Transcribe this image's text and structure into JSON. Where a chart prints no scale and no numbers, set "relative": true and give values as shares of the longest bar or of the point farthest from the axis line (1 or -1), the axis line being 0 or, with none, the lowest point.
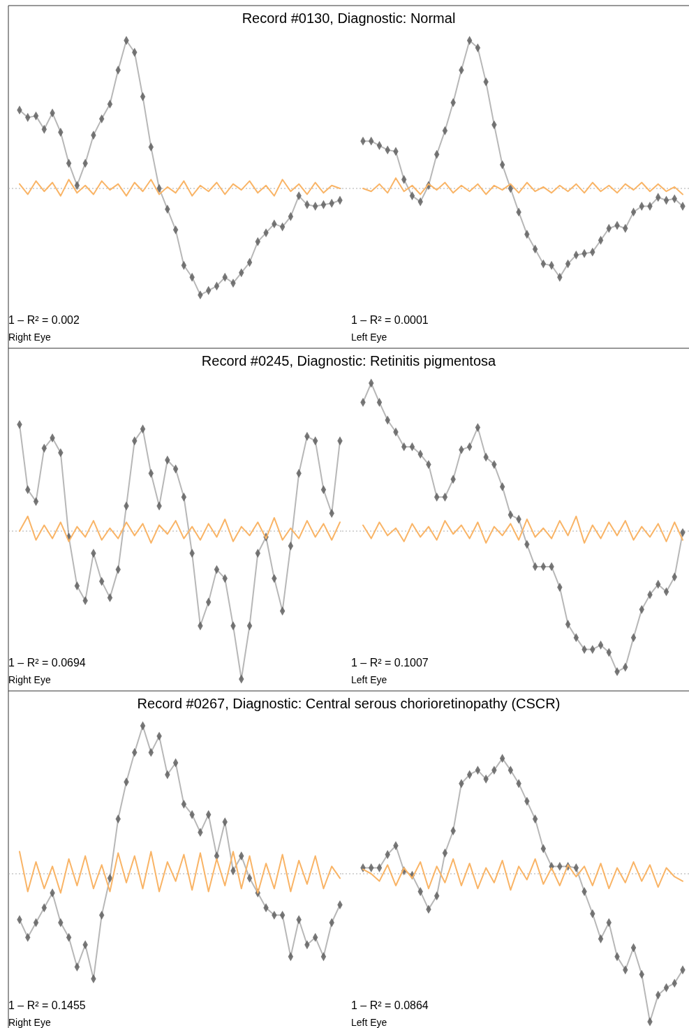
{
  "chart_data": [
    {
      "type": "line",
      "title": "Record #0130, Diagnostic: Normal",
      "relative": true,
      "ref_lines": [
        {
          "axis": "y",
          "value": 0,
          "color": "#aaaaaa",
          "line_style": "dotted"
        }
      ],
      "annotations": [
        "1 – R² = 0.002",
        "Right Eye"
      ],
      "categories": [
        null,
        null,
        null,
        null,
        null,
        null,
        null,
        null,
        null,
        null,
        null,
        null,
        null,
        null,
        null,
        null,
        null,
        null,
        null,
        null,
        null,
        null,
        null,
        null,
        null,
        null,
        null,
        null,
        null,
        null,
        null,
        null,
        null,
        null,
        null,
        null,
        null,
        null,
        null,
        null
      ],
      "series": [
        {
          "marker": "diamond",
          "color": "#606060",
          "values": [
            0.53,
            0.48,
            0.49,
            0.4,
            0.51,
            0.38,
            0.17,
            0.02,
            0.17,
            0.36,
            0.47,
            0.57,
            0.8,
            1.0,
            0.92,
            0.62,
            0.28,
            0,
            -0.14,
            -0.28,
            -0.52,
            -0.6,
            -0.72,
            -0.69,
            -0.66,
            -0.6,
            -0.64,
            -0.57,
            -0.5,
            -0.36,
            -0.3,
            -0.24,
            -0.26,
            -0.19,
            -0.05,
            -0.11,
            -0.12,
            -0.11,
            -0.1,
            -0.08
          ]
        },
        {
          "type": "line",
          "color": "#f9b466",
          "values": [
            0.03,
            -0.04,
            0.05,
            -0.02,
            0.04,
            -0.05,
            0.06,
            -0.03,
            0.02,
            -0.04,
            0.05,
            -0.01,
            0.03,
            -0.05,
            0.04,
            -0.02,
            0.06,
            -0.04,
            0.01,
            -0.03,
            0.05,
            -0.05,
            0.02,
            -0.02,
            0.04,
            -0.04,
            0.03,
            -0.01,
            0.05,
            -0.03,
            0.02,
            -0.05,
            0.06,
            -0.02,
            0.03,
            -0.04,
            0.04,
            -0.03,
            0.02,
            0.0
          ]
        }
      ]
    },
    {
      "type": "line",
      "relative": true,
      "ref_lines": [
        {
          "axis": "y",
          "value": 0,
          "color": "#aaaaaa",
          "line_style": "dotted"
        }
      ],
      "annotations": [
        "1 – R² = 0.0001",
        "Left Eye"
      ],
      "categories": [
        null,
        null,
        null,
        null,
        null,
        null,
        null,
        null,
        null,
        null,
        null,
        null,
        null,
        null,
        null,
        null,
        null,
        null,
        null,
        null,
        null,
        null,
        null,
        null,
        null,
        null,
        null,
        null,
        null,
        null,
        null,
        null,
        null,
        null,
        null,
        null,
        null,
        null,
        null,
        null
      ],
      "series": [
        {
          "marker": "diamond",
          "color": "#606060",
          "values": [
            0.32,
            0.32,
            0.29,
            0.26,
            0.25,
            0.06,
            -0.05,
            -0.09,
            0.02,
            0.23,
            0.39,
            0.58,
            0.8,
            1.0,
            0.95,
            0.72,
            0.43,
            0.16,
            0,
            -0.16,
            -0.31,
            -0.41,
            -0.51,
            -0.52,
            -0.6,
            -0.51,
            -0.45,
            -0.44,
            -0.43,
            -0.35,
            -0.27,
            -0.25,
            -0.27,
            -0.16,
            -0.12,
            -0.12,
            -0.06,
            -0.08,
            -0.07,
            -0.12
          ]
        },
        {
          "type": "line",
          "color": "#f9b466",
          "values": [
            0.0,
            -0.02,
            0.03,
            -0.03,
            0.07,
            -0.02,
            0.02,
            -0.04,
            0.03,
            -0.01,
            0.04,
            -0.03,
            0.02,
            -0.02,
            0.03,
            -0.04,
            0.02,
            -0.01,
            0.03,
            -0.03,
            0.04,
            -0.02,
            0.01,
            -0.03,
            0.02,
            -0.02,
            0.03,
            -0.03,
            0.04,
            -0.02,
            0.02,
            -0.03,
            0.03,
            -0.01,
            0.04,
            -0.02,
            0.03,
            -0.02,
            0.01,
            -0.04
          ]
        }
      ]
    },
    {
      "type": "line",
      "title": "Record #0245, Diagnostic: Retinitis pigmentosa",
      "relative": true,
      "ref_lines": [
        {
          "axis": "y",
          "value": 0,
          "color": "#aaaaaa",
          "line_style": "dotted"
        }
      ],
      "annotations": [
        "1 – R² = 0.0694",
        "Right Eye"
      ],
      "categories": [
        null,
        null,
        null,
        null,
        null,
        null,
        null,
        null,
        null,
        null,
        null,
        null,
        null,
        null,
        null,
        null,
        null,
        null,
        null,
        null,
        null,
        null,
        null,
        null,
        null,
        null,
        null,
        null,
        null,
        null,
        null,
        null,
        null,
        null,
        null,
        null,
        null,
        null,
        null,
        null
      ],
      "series": [
        {
          "marker": "diamond",
          "color": "#606060",
          "values": [
            0.72,
            0.28,
            0.2,
            0.56,
            0.63,
            0.53,
            -0.04,
            -0.37,
            -0.47,
            -0.15,
            -0.34,
            -0.45,
            -0.26,
            0.17,
            0.61,
            0.69,
            0.39,
            0.17,
            0.48,
            0.42,
            0.23,
            -0.15,
            -0.64,
            -0.48,
            -0.26,
            -0.32,
            -0.64,
            -1.0,
            -0.64,
            -0.15,
            -0.04,
            -0.32,
            -0.54,
            -0.1,
            0.39,
            0.64,
            0.61,
            0.28,
            0.12,
            0.61
          ]
        },
        {
          "type": "line",
          "color": "#f9b466",
          "values": [
            0.0,
            0.1,
            -0.06,
            0.04,
            -0.05,
            0.06,
            -0.07,
            0.03,
            -0.04,
            0.07,
            -0.06,
            0.02,
            -0.05,
            0.06,
            -0.03,
            0.05,
            -0.08,
            0.04,
            -0.02,
            0.07,
            -0.05,
            0.03,
            -0.06,
            0.05,
            -0.04,
            0.08,
            -0.07,
            0.03,
            -0.03,
            0.06,
            -0.05,
            0.09,
            -0.06,
            0.02,
            -0.05,
            0.07,
            -0.04,
            0.05,
            -0.06,
            0.06
          ]
        }
      ]
    },
    {
      "type": "line",
      "relative": true,
      "ref_lines": [
        {
          "axis": "y",
          "value": 0,
          "color": "#aaaaaa",
          "line_style": "dotted"
        }
      ],
      "annotations": [
        "1 – R² = 0.1007",
        "Left Eye"
      ],
      "categories": [
        null,
        null,
        null,
        null,
        null,
        null,
        null,
        null,
        null,
        null,
        null,
        null,
        null,
        null,
        null,
        null,
        null,
        null,
        null,
        null,
        null,
        null,
        null,
        null,
        null,
        null,
        null,
        null,
        null,
        null,
        null,
        null,
        null,
        null,
        null,
        null,
        null,
        null,
        null,
        null
      ],
      "series": [
        {
          "marker": "diamond",
          "color": "#606060",
          "values": [
            0.87,
            1.0,
            0.87,
            0.75,
            0.67,
            0.57,
            0.57,
            0.52,
            0.45,
            0.23,
            0.23,
            0.35,
            0.55,
            0.57,
            0.7,
            0.5,
            0.45,
            0.3,
            0.11,
            0.08,
            -0.09,
            -0.24,
            -0.24,
            -0.24,
            -0.38,
            -0.63,
            -0.72,
            -0.8,
            -0.8,
            -0.77,
            -0.82,
            -0.95,
            -0.92,
            -0.72,
            -0.53,
            -0.43,
            -0.36,
            -0.41,
            -0.31,
            -0.01
          ]
        },
        {
          "type": "line",
          "color": "#f9b466",
          "values": [
            0.04,
            -0.05,
            0.06,
            -0.03,
            0.02,
            -0.07,
            0.05,
            -0.04,
            0.03,
            -0.06,
            0.07,
            -0.02,
            0.04,
            -0.05,
            0.06,
            -0.08,
            0.03,
            -0.03,
            0.05,
            -0.06,
            0.08,
            -0.04,
            0.02,
            -0.05,
            0.07,
            -0.03,
            0.1,
            -0.08,
            0.04,
            -0.05,
            0.06,
            -0.03,
            0.07,
            -0.06,
            0.03,
            -0.04,
            0.05,
            -0.07,
            0.06,
            -0.06
          ]
        }
      ]
    },
    {
      "type": "line",
      "title": "Record #0267, Diagnostic: Central serous chorioretinopathy (CSCR)",
      "relative": true,
      "ref_lines": [
        {
          "axis": "y",
          "value": 0,
          "color": "#aaaaaa",
          "line_style": "dotted"
        }
      ],
      "annotations": [
        "1 – R² = 0.1455",
        "Right Eye"
      ],
      "categories": [
        null,
        null,
        null,
        null,
        null,
        null,
        null,
        null,
        null,
        null,
        null,
        null,
        null,
        null,
        null,
        null,
        null,
        null,
        null,
        null,
        null,
        null,
        null,
        null,
        null,
        null,
        null,
        null,
        null,
        null,
        null,
        null,
        null,
        null,
        null,
        null,
        null,
        null,
        null,
        null
      ],
      "series": [
        {
          "marker": "diamond",
          "color": "#606060",
          "values": [
            -0.31,
            -0.43,
            -0.33,
            -0.23,
            -0.13,
            -0.33,
            -0.43,
            -0.63,
            -0.48,
            -0.71,
            -0.28,
            -0.03,
            0.37,
            0.62,
            0.82,
            1.0,
            0.82,
            0.93,
            0.67,
            0.75,
            0.47,
            0.4,
            0.28,
            0.4,
            0.12,
            0.35,
            0.02,
            0.12,
            -0.03,
            -0.13,
            -0.23,
            -0.28,
            -0.28,
            -0.56,
            -0.31,
            -0.48,
            -0.43,
            -0.56,
            -0.33,
            -0.21
          ]
        },
        {
          "type": "line",
          "color": "#f9b466",
          "values": [
            0.15,
            -0.12,
            0.08,
            -0.1,
            0.05,
            -0.13,
            0.1,
            -0.08,
            0.12,
            -0.1,
            0.06,
            -0.12,
            0.14,
            -0.06,
            0.12,
            -0.1,
            0.15,
            -0.12,
            0.08,
            -0.05,
            0.13,
            -0.11,
            0.14,
            -0.12,
            0.1,
            -0.08,
            0.15,
            -0.1,
            0.12,
            -0.13,
            0.07,
            -0.1,
            0.13,
            -0.12,
            0.09,
            -0.07,
            0.12,
            -0.1,
            0.05,
            -0.03
          ]
        }
      ]
    },
    {
      "type": "line",
      "relative": true,
      "ref_lines": [
        {
          "axis": "y",
          "value": 0,
          "color": "#aaaaaa",
          "line_style": "dotted"
        }
      ],
      "annotations": [
        "1 – R² = 0.0864",
        "Left Eye"
      ],
      "categories": [
        null,
        null,
        null,
        null,
        null,
        null,
        null,
        null,
        null,
        null,
        null,
        null,
        null,
        null,
        null,
        null,
        null,
        null,
        null,
        null,
        null,
        null,
        null,
        null,
        null,
        null,
        null,
        null,
        null,
        null,
        null,
        null,
        null,
        null,
        null,
        null,
        null,
        null,
        null,
        null
      ],
      "series": [
        {
          "marker": "diamond",
          "color": "#606060",
          "values": [
            0.04,
            0.04,
            0.04,
            0.13,
            0.19,
            0.02,
            -0.01,
            -0.12,
            -0.24,
            -0.15,
            0.14,
            0.29,
            0.61,
            0.67,
            0.7,
            0.64,
            0.7,
            0.78,
            0.7,
            0.61,
            0.49,
            0.37,
            0.17,
            0.05,
            0.05,
            0.05,
            0.04,
            -0.12,
            -0.27,
            -0.44,
            -0.33,
            -0.56,
            -0.65,
            -0.5,
            -0.68,
            -1.0,
            -0.82,
            -0.77,
            -0.74,
            -0.65
          ]
        },
        {
          "type": "line",
          "color": "#f9b466",
          "values": [
            0.03,
            0.0,
            -0.05,
            0.06,
            -0.08,
            0.04,
            -0.03,
            0.08,
            -0.1,
            0.05,
            -0.06,
            0.1,
            -0.08,
            0.07,
            -0.1,
            0.04,
            -0.06,
            0.09,
            -0.11,
            0.05,
            -0.04,
            0.1,
            -0.07,
            0.04,
            -0.08,
            0.06,
            -0.02,
            0.05,
            -0.08,
            0.07,
            -0.1,
            0.04,
            -0.06,
            0.08,
            -0.05,
            0.06,
            -0.09,
            0.04,
            -0.02,
            -0.05
          ]
        }
      ]
    }
  ]
}
